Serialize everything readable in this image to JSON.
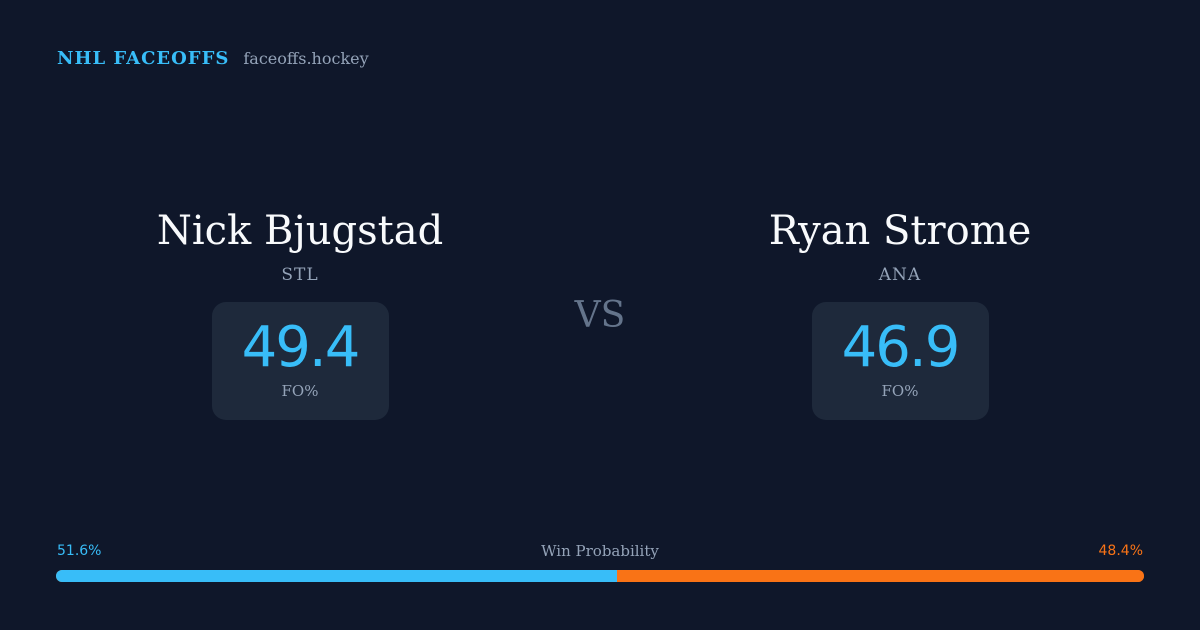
{
  "header": {
    "brand": "NHL FACEOFFS",
    "site": "faceoffs.hockey"
  },
  "players": {
    "left": {
      "name": "Nick Bjugstad",
      "team": "STL",
      "fo_value": "49.4",
      "fo_label": "FO%"
    },
    "right": {
      "name": "Ryan Strome",
      "team": "ANA",
      "fo_value": "46.9",
      "fo_label": "FO%"
    }
  },
  "vs_label": "VS",
  "win_probability": {
    "title": "Win Probability",
    "left_label": "51.6%",
    "right_label": "48.4%",
    "left_value": 51.6,
    "right_value": 48.4
  },
  "colors": {
    "background": "#0f172a",
    "accent_blue": "#38bdf8",
    "accent_orange": "#f97316",
    "card": "#1e293b",
    "muted": "#94a3b8"
  }
}
